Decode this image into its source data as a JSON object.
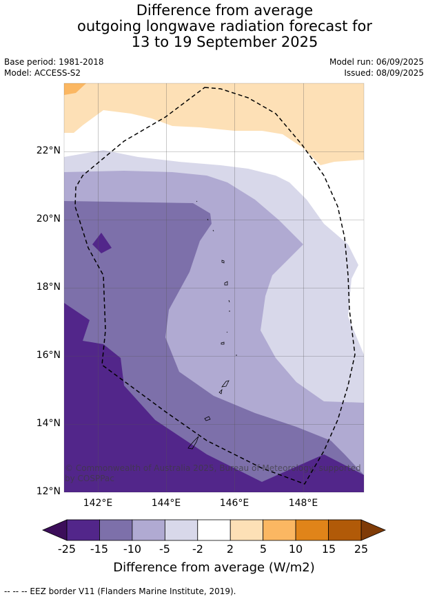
{
  "title": {
    "line1": "Difference from average",
    "line2": "outgoing longwave radiation forecast for",
    "line3": "13 to 19 September 2025"
  },
  "meta": {
    "base_period": "Base period: 1981-2018",
    "model": "Model: ACCESS-S2",
    "model_run": "Model run: 06/09/2025",
    "issued": "Issued: 08/09/2025"
  },
  "map": {
    "lat_labels": [
      "22°N",
      "20°N",
      "18°N",
      "16°N",
      "14°N",
      "12°N"
    ],
    "lon_labels": [
      "142°E",
      "144°E",
      "146°E",
      "148°E"
    ],
    "copyright": "© Commonwealth of Australia 2025, Bureau of Meteorology, supported by COSPPac"
  },
  "colorbar": {
    "ticks": [
      "-25",
      "-15",
      "-10",
      "-5",
      "-2",
      "2",
      "5",
      "10",
      "15",
      "25"
    ],
    "colors": [
      "#52268a",
      "#7d70aa",
      "#b0aad2",
      "#d8d8ea",
      "#ffffff",
      "#fde0b6",
      "#fbb762",
      "#e08419",
      "#b15a08"
    ],
    "under_color": "#3c0e5a",
    "over_color": "#7f3b07",
    "label": "Difference from average (W/m2)"
  },
  "footer": {
    "legend_text": "--  --  -- EEZ border V11 (Flanders Marine Institute, 2019)."
  }
}
